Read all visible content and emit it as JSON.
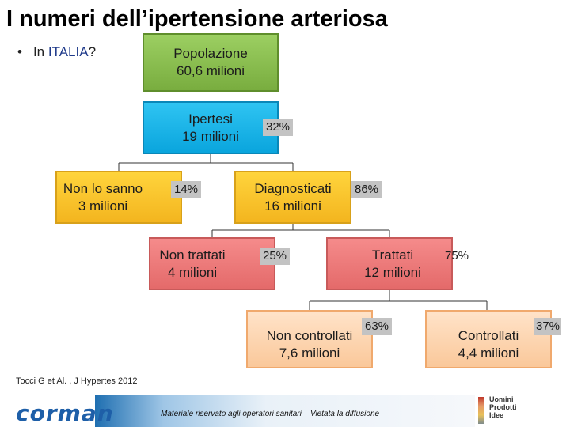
{
  "title": "I numeri dell’ipertensione arteriosa",
  "bullet": {
    "marker": "•",
    "prefix": "In ",
    "country": "ITALIA",
    "suffix": "?"
  },
  "nodes": {
    "popolazione": {
      "label": "Popolazione",
      "value": "60,6 milioni",
      "color": "#8cc152"
    },
    "ipertesi": {
      "label": "Ipertesi",
      "value": "19 milioni",
      "pct": "32%",
      "color": "#18b5ea"
    },
    "non_lo_sanno": {
      "label": "Non lo sanno",
      "value": "3 milioni",
      "pct": "14%",
      "color": "#f8c22c"
    },
    "diagnosticati": {
      "label": "Diagnosticati",
      "value": "16 milioni",
      "pct": "86%",
      "color": "#f8c22c"
    },
    "non_trattati": {
      "label": "Non trattati",
      "value": "4 milioni",
      "pct": "25%",
      "color": "#ef7b7b"
    },
    "trattati": {
      "label": "Trattati",
      "value": "12 milioni",
      "pct": "75%",
      "color": "#ef7b7b"
    },
    "non_controllati": {
      "label": "Non controllati",
      "value": "7,6 milioni",
      "pct": "63%",
      "color": "#fdd5b1"
    },
    "controllati": {
      "label": "Controllati",
      "value": "4,4 milioni",
      "pct": "37%",
      "color": "#fdd5b1"
    }
  },
  "source": "Tocci G et Al. , J Hypertes 2012",
  "footer": {
    "disclaimer": "Materiale riservato agli operatori sanitari – Vietata la diffusione",
    "logo": "corman",
    "brand_lines": [
      "Uomini",
      "Prodotti",
      "Idee"
    ]
  }
}
